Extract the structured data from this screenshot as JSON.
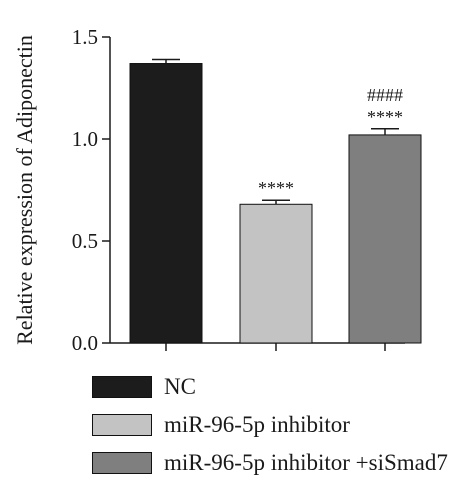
{
  "chart_data": {
    "type": "bar",
    "categories": [
      "NC",
      "miR-96-5p inhibitor",
      "miR-96-5p inhibitor +siSmad7"
    ],
    "values": [
      1.37,
      0.68,
      1.02
    ],
    "errors": [
      0.02,
      0.02,
      0.03
    ],
    "colors": [
      "#1c1c1c",
      "#c3c3c3",
      "#7f7f7f"
    ],
    "annotations": [
      {
        "category": 1,
        "labels": [
          "****"
        ]
      },
      {
        "category": 2,
        "labels": [
          "####",
          "****"
        ]
      }
    ],
    "ylabel": "Relative expression of Adiponectin",
    "yticks": [
      "0.0",
      "0.5",
      "1.0",
      "1.5"
    ],
    "ylim": [
      0,
      1.5
    ],
    "grid": false,
    "legend_placement": "bottom"
  }
}
